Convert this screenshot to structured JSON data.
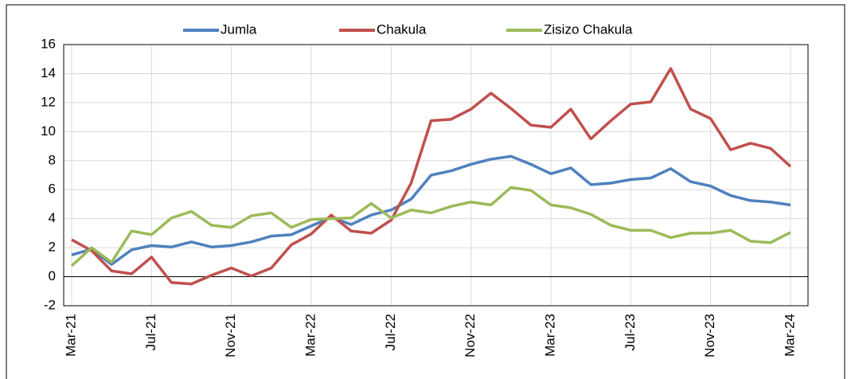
{
  "chart_data": {
    "type": "line",
    "categories": [
      "Mar-21",
      null,
      null,
      null,
      "Jul-21",
      null,
      null,
      null,
      "Nov-21",
      null,
      null,
      null,
      "Mar-22",
      null,
      null,
      null,
      "Jul-22",
      null,
      null,
      null,
      "Nov-22",
      null,
      null,
      null,
      "Mar-23",
      null,
      null,
      null,
      "Jul-23",
      null,
      null,
      null,
      "Nov-23",
      null,
      null,
      null,
      "Mar-24"
    ],
    "series": [
      {
        "name": "Jumla",
        "color": "#4f81bd",
        "values": [
          1.5,
          1.9,
          0.85,
          1.85,
          2.15,
          2.05,
          2.4,
          2.05,
          2.15,
          2.4,
          2.8,
          2.9,
          3.5,
          4.1,
          3.6,
          4.25,
          4.6,
          5.35,
          7.0,
          7.3,
          7.75,
          8.1,
          8.3,
          7.75,
          7.1,
          7.5,
          6.35,
          6.45,
          6.7,
          6.8,
          7.45,
          6.55,
          6.25,
          5.6,
          5.25,
          5.15,
          4.95
        ]
      },
      {
        "name": "Chakula",
        "color": "#c0504d",
        "values": [
          2.55,
          1.8,
          0.4,
          0.2,
          1.35,
          -0.4,
          -0.5,
          0.1,
          0.6,
          0.05,
          0.6,
          2.2,
          2.95,
          4.25,
          3.15,
          3.0,
          3.9,
          6.45,
          10.75,
          10.85,
          11.55,
          12.65,
          11.6,
          10.45,
          10.3,
          11.55,
          9.5,
          10.75,
          11.9,
          12.05,
          14.35,
          11.55,
          10.9,
          8.75,
          9.2,
          8.85,
          7.6
        ]
      },
      {
        "name": "Zisizo Chakula",
        "color": "#9bbb59",
        "values": [
          0.75,
          2.0,
          1.0,
          3.15,
          2.9,
          4.05,
          4.5,
          3.55,
          3.4,
          4.2,
          4.4,
          3.4,
          3.95,
          4.0,
          4.05,
          5.05,
          4.05,
          4.6,
          4.4,
          4.85,
          5.15,
          4.95,
          6.15,
          5.95,
          4.95,
          4.75,
          4.3,
          3.55,
          3.2,
          3.2,
          2.7,
          3.0,
          3.0,
          3.2,
          2.45,
          2.35,
          3.05
        ]
      }
    ],
    "ylim": [
      -2,
      16
    ],
    "yticks": [
      -2,
      0,
      2,
      4,
      6,
      8,
      10,
      12,
      14,
      16
    ],
    "grid": true,
    "legend": "top"
  }
}
